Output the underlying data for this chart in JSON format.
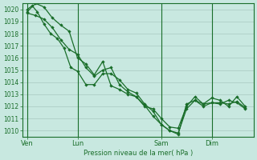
{
  "background_color": "#c8e8e0",
  "grid_color": "#a8c8c0",
  "line_color": "#1a6e2a",
  "marker_color": "#1a6e2a",
  "xlabel": "Pression niveau de la mer( hPa )",
  "ylim": [
    1009.5,
    1020.5
  ],
  "yticks": [
    1010,
    1011,
    1012,
    1013,
    1014,
    1015,
    1016,
    1017,
    1018,
    1019,
    1020
  ],
  "xtick_labels": [
    "Ven",
    "Lun",
    "Sam",
    "Dim"
  ],
  "xtick_positions": [
    0,
    3,
    8,
    11
  ],
  "xlim": [
    -0.3,
    13.5
  ],
  "series1_x": [
    0,
    0.3,
    0.6,
    1.0,
    1.4,
    1.8,
    2.2,
    2.6,
    3.0,
    3.5,
    4.0,
    4.5,
    5.0,
    5.5,
    6.0,
    6.5,
    7.0,
    7.5,
    8.0,
    8.5,
    9.0,
    9.5,
    10.0,
    10.5,
    11.0,
    11.5,
    12.0,
    12.5,
    13.0
  ],
  "series1_y": [
    1020.0,
    1020.3,
    1019.8,
    1018.8,
    1018.0,
    1017.6,
    1016.8,
    1015.2,
    1014.9,
    1013.8,
    1013.8,
    1014.7,
    1014.7,
    1014.2,
    1013.4,
    1013.1,
    1012.2,
    1011.6,
    1010.5,
    1010.0,
    1009.8,
    1011.8,
    1012.5,
    1012.0,
    1012.3,
    1012.2,
    1012.5,
    1012.3,
    1011.8
  ],
  "series2_x": [
    0.0,
    0.5,
    1.0,
    1.5,
    2.0,
    2.5,
    3.0,
    3.5,
    4.0,
    4.5,
    5.0,
    5.5,
    6.0,
    6.5,
    7.0,
    7.5,
    8.0,
    8.5,
    9.0,
    9.5,
    10.0,
    10.5,
    11.0,
    11.5,
    12.0,
    12.5,
    13.0
  ],
  "series2_y": [
    1019.8,
    1020.5,
    1020.2,
    1019.3,
    1018.7,
    1018.2,
    1016.0,
    1015.5,
    1014.6,
    1015.7,
    1013.7,
    1013.4,
    1013.0,
    1012.8,
    1012.0,
    1011.8,
    1011.0,
    1010.3,
    1010.2,
    1012.0,
    1012.8,
    1012.2,
    1012.7,
    1012.5,
    1012.0,
    1012.8,
    1012.0
  ],
  "series3_x": [
    0.0,
    0.5,
    1.0,
    1.5,
    2.0,
    2.5,
    3.0,
    3.5,
    4.0,
    4.5,
    5.0,
    5.5,
    6.0,
    6.5,
    7.0,
    7.5,
    8.0,
    8.5,
    9.0,
    9.5,
    10.0,
    10.5,
    11.0,
    11.5,
    12.0,
    12.5,
    13.0
  ],
  "series3_y": [
    1019.7,
    1019.5,
    1019.2,
    1018.5,
    1017.5,
    1016.7,
    1016.3,
    1015.2,
    1014.5,
    1015.0,
    1015.2,
    1013.8,
    1013.2,
    1012.8,
    1012.1,
    1011.2,
    1010.5,
    1010.0,
    1009.7,
    1012.2,
    1012.5,
    1012.2,
    1012.3,
    1012.3,
    1012.2,
    1012.4,
    1011.9
  ],
  "vlines": [
    0,
    3,
    8,
    11
  ]
}
